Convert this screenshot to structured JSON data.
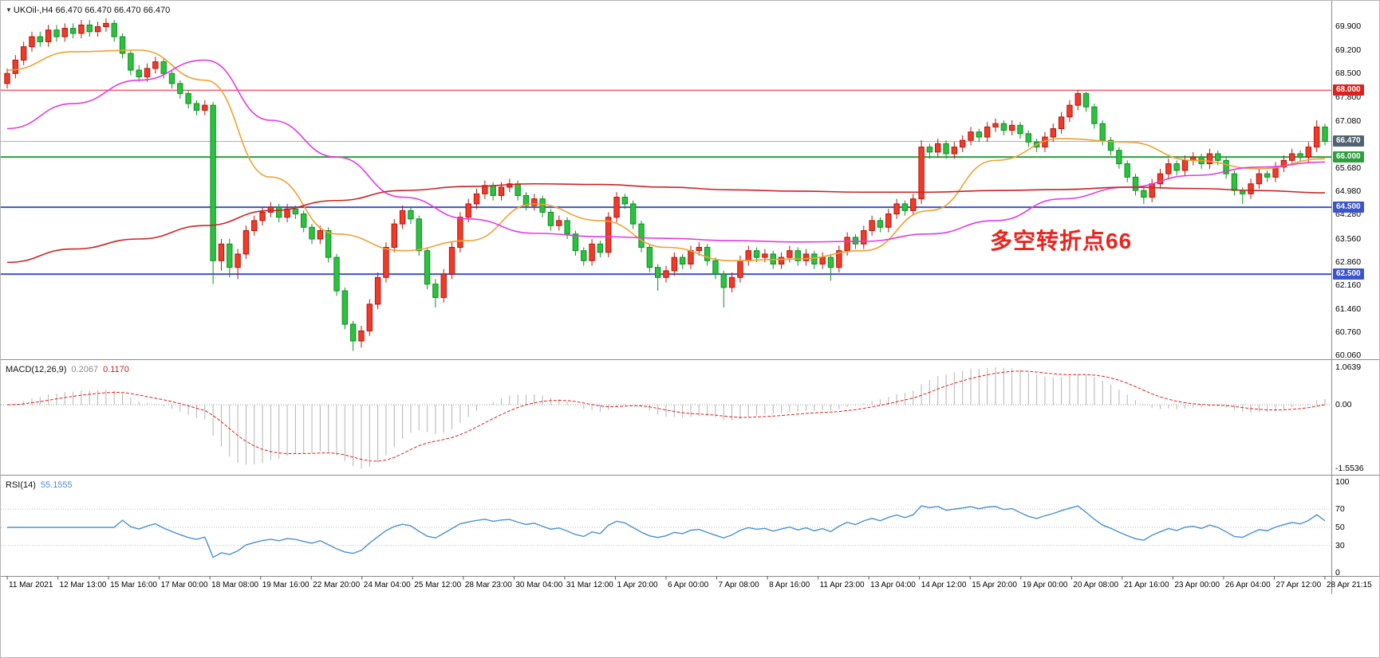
{
  "chart_data": [
    {
      "type": "candlestick",
      "symbol": "UKOil-,H4",
      "timeframe": "H4",
      "ohlc_readout": "66.470 66.470 66.470 66.470",
      "current_price": "66.470",
      "ylim": [
        60.0,
        70.15
      ],
      "up_color": "#f23a28",
      "up_stroke": "#b3170e",
      "down_color": "#2cc13e",
      "down_stroke": "#0e8f24",
      "axis_labels": [
        "69.900",
        "69.200",
        "68.500",
        "67.800",
        "67.080",
        "65.680",
        "64.980",
        "64.280",
        "63.560",
        "62.860",
        "62.160",
        "61.460",
        "60.760",
        "60.060"
      ],
      "hlines": [
        {
          "price": 68.0,
          "label": "68.000",
          "color": "#dd2020",
          "badge": "#dd2020",
          "width": 1
        },
        {
          "price": 66.0,
          "label": "66.000",
          "color": "#2e9e3e",
          "badge": "#2e9e3e",
          "width": 2
        },
        {
          "price": 64.5,
          "label": "64.500",
          "color": "#3c55cc",
          "badge": "#3c55cc",
          "width": 2
        },
        {
          "price": 62.5,
          "label": "62.500",
          "color": "#3c55cc",
          "badge": "#3c55cc",
          "width": 2
        }
      ],
      "bid_line": {
        "price": 66.47,
        "label": "66.470",
        "color": "#9ab4cc",
        "badge": "#50646f"
      },
      "annotation": {
        "text": "多空转折点66",
        "color": "#e8251f"
      },
      "x_labels": [
        "11 Mar 2021",
        "12 Mar 13:00",
        "15 Mar 16:00",
        "17 Mar 00:00",
        "18 Mar 08:00",
        "19 Mar 16:00",
        "22 Mar 20:00",
        "24 Mar 04:00",
        "25 Mar 12:00",
        "28 Mar 23:00",
        "30 Mar 04:00",
        "31 Mar 12:00",
        "1 Apr 20:00",
        "6 Apr 00:00",
        "7 Apr 08:00",
        "8 Apr 16:00",
        "11 Apr 23:00",
        "13 Apr 04:00",
        "14 Apr 12:00",
        "15 Apr 20:00",
        "19 Apr 00:00",
        "20 Apr 08:00",
        "21 Apr 16:00",
        "23 Apr 00:00",
        "26 Apr 04:00",
        "27 Apr 12:00",
        "28 Apr 21:15"
      ],
      "ma": [
        {
          "name": "ma-fast-orange",
          "color": "#f0a030",
          "sample_step": 8,
          "values": [
            68.6,
            69.15,
            69.2,
            68.3,
            65.4,
            63.7,
            63.2,
            63.5,
            64.6,
            64.1,
            63.3,
            62.9,
            62.95,
            63.2,
            64.4,
            65.9,
            66.55,
            66.45,
            65.9,
            65.65,
            65.95
          ]
        },
        {
          "name": "ma-mid-magenta",
          "color": "#e23ae2",
          "sample_step": 8,
          "values": [
            66.85,
            67.6,
            68.3,
            68.9,
            67.1,
            66.0,
            64.8,
            64.15,
            63.72,
            63.62,
            63.57,
            63.5,
            63.46,
            63.48,
            63.7,
            64.1,
            64.75,
            65.1,
            65.45,
            65.7,
            65.85
          ]
        },
        {
          "name": "ma-slow-red",
          "color": "#cc2222",
          "sample_step": 8,
          "values": [
            62.85,
            63.25,
            63.55,
            63.95,
            64.4,
            64.7,
            65.0,
            65.12,
            65.2,
            65.18,
            65.1,
            65.02,
            64.98,
            64.95,
            64.95,
            65.0,
            65.03,
            65.1,
            65.06,
            65.0,
            64.93
          ]
        }
      ],
      "ohlc": [
        [
          68.2,
          68.65,
          68.05,
          68.5
        ],
        [
          68.5,
          69.05,
          68.35,
          68.9
        ],
        [
          68.9,
          69.45,
          68.75,
          69.3
        ],
        [
          69.3,
          69.75,
          69.15,
          69.6
        ],
        [
          69.6,
          69.75,
          69.3,
          69.45
        ],
        [
          69.45,
          69.95,
          69.3,
          69.8
        ],
        [
          69.8,
          69.95,
          69.45,
          69.6
        ],
        [
          69.6,
          70.0,
          69.45,
          69.85
        ],
        [
          69.85,
          70.0,
          69.55,
          69.7
        ],
        [
          69.7,
          70.1,
          69.55,
          69.95
        ],
        [
          69.95,
          70.1,
          69.6,
          69.75
        ],
        [
          69.75,
          70.05,
          69.6,
          69.9
        ],
        [
          69.9,
          70.15,
          69.75,
          70.0
        ],
        [
          70.0,
          70.1,
          69.45,
          69.6
        ],
        [
          69.6,
          69.7,
          68.95,
          69.1
        ],
        [
          69.1,
          69.2,
          68.45,
          68.6
        ],
        [
          68.6,
          68.75,
          68.25,
          68.4
        ],
        [
          68.4,
          68.8,
          68.25,
          68.65
        ],
        [
          68.65,
          69.0,
          68.5,
          68.85
        ],
        [
          68.85,
          68.95,
          68.35,
          68.5
        ],
        [
          68.5,
          68.6,
          68.05,
          68.2
        ],
        [
          68.2,
          68.3,
          67.75,
          67.9
        ],
        [
          67.9,
          68.0,
          67.45,
          67.6
        ],
        [
          67.6,
          67.7,
          67.25,
          67.4
        ],
        [
          67.4,
          67.7,
          67.25,
          67.55
        ],
        [
          67.55,
          67.65,
          62.2,
          62.9
        ],
        [
          62.9,
          63.55,
          62.6,
          63.4
        ],
        [
          63.4,
          63.55,
          62.4,
          62.7
        ],
        [
          62.7,
          63.25,
          62.35,
          63.1
        ],
        [
          63.1,
          63.95,
          62.95,
          63.8
        ],
        [
          63.8,
          64.25,
          63.65,
          64.1
        ],
        [
          64.1,
          64.5,
          63.95,
          64.35
        ],
        [
          64.35,
          64.65,
          64.2,
          64.5
        ],
        [
          64.5,
          64.6,
          64.05,
          64.2
        ],
        [
          64.2,
          64.6,
          64.05,
          64.45
        ],
        [
          64.45,
          64.55,
          64.15,
          64.3
        ],
        [
          64.3,
          64.4,
          63.75,
          63.9
        ],
        [
          63.9,
          64.0,
          63.4,
          63.55
        ],
        [
          63.55,
          63.95,
          63.4,
          63.8
        ],
        [
          63.8,
          63.9,
          62.85,
          63.0
        ],
        [
          63.0,
          63.1,
          61.85,
          62.0
        ],
        [
          62.0,
          62.1,
          60.85,
          61.0
        ],
        [
          61.0,
          61.1,
          60.2,
          60.5
        ],
        [
          60.5,
          60.95,
          60.3,
          60.8
        ],
        [
          60.8,
          61.75,
          60.65,
          61.6
        ],
        [
          61.6,
          62.55,
          61.45,
          62.4
        ],
        [
          62.4,
          63.45,
          62.25,
          63.3
        ],
        [
          63.3,
          64.15,
          63.15,
          64.0
        ],
        [
          64.0,
          64.55,
          63.85,
          64.4
        ],
        [
          64.4,
          64.5,
          64.0,
          64.15
        ],
        [
          64.15,
          64.25,
          63.05,
          63.2
        ],
        [
          63.2,
          63.3,
          62.05,
          62.2
        ],
        [
          62.2,
          62.35,
          61.5,
          61.8
        ],
        [
          61.8,
          62.65,
          61.65,
          62.5
        ],
        [
          62.5,
          63.45,
          62.35,
          63.3
        ],
        [
          63.3,
          64.35,
          63.15,
          64.2
        ],
        [
          64.2,
          64.75,
          64.05,
          64.6
        ],
        [
          64.6,
          65.05,
          64.45,
          64.9
        ],
        [
          64.9,
          65.3,
          64.75,
          65.15
        ],
        [
          65.15,
          65.25,
          64.7,
          64.85
        ],
        [
          64.85,
          65.25,
          64.7,
          65.1
        ],
        [
          65.1,
          65.35,
          64.95,
          65.2
        ],
        [
          65.2,
          65.3,
          64.7,
          64.85
        ],
        [
          64.85,
          64.95,
          64.4,
          64.55
        ],
        [
          64.55,
          64.9,
          64.4,
          64.75
        ],
        [
          64.75,
          64.85,
          64.2,
          64.35
        ],
        [
          64.35,
          64.45,
          63.8,
          63.95
        ],
        [
          63.95,
          64.25,
          63.8,
          64.1
        ],
        [
          64.1,
          64.2,
          63.55,
          63.7
        ],
        [
          63.7,
          63.8,
          63.05,
          63.2
        ],
        [
          63.2,
          63.3,
          62.75,
          62.9
        ],
        [
          62.9,
          63.55,
          62.75,
          63.4
        ],
        [
          63.4,
          63.5,
          63.0,
          63.15
        ],
        [
          63.15,
          64.35,
          63.0,
          64.2
        ],
        [
          64.2,
          64.95,
          64.05,
          64.8
        ],
        [
          64.8,
          64.9,
          64.45,
          64.6
        ],
        [
          64.6,
          64.7,
          63.85,
          64.0
        ],
        [
          64.0,
          64.1,
          63.15,
          63.3
        ],
        [
          63.3,
          63.4,
          62.55,
          62.7
        ],
        [
          62.7,
          62.8,
          62.0,
          62.4
        ],
        [
          62.4,
          62.75,
          62.25,
          62.6
        ],
        [
          62.6,
          63.15,
          62.45,
          63.0
        ],
        [
          63.0,
          63.1,
          62.65,
          62.8
        ],
        [
          62.8,
          63.35,
          62.65,
          63.2
        ],
        [
          63.2,
          63.45,
          63.05,
          63.3
        ],
        [
          63.3,
          63.4,
          62.75,
          62.9
        ],
        [
          62.9,
          63.0,
          62.35,
          62.5
        ],
        [
          62.5,
          62.6,
          61.5,
          62.1
        ],
        [
          62.1,
          62.55,
          61.95,
          62.4
        ],
        [
          62.4,
          63.05,
          62.25,
          62.9
        ],
        [
          62.9,
          63.35,
          62.75,
          63.2
        ],
        [
          63.2,
          63.3,
          62.85,
          63.0
        ],
        [
          63.0,
          63.25,
          62.85,
          63.1
        ],
        [
          63.1,
          63.2,
          62.65,
          62.8
        ],
        [
          62.8,
          63.15,
          62.65,
          63.0
        ],
        [
          63.0,
          63.35,
          62.85,
          63.2
        ],
        [
          63.2,
          63.3,
          62.75,
          62.9
        ],
        [
          62.9,
          63.25,
          62.75,
          63.1
        ],
        [
          63.1,
          63.2,
          62.65,
          62.8
        ],
        [
          62.8,
          63.15,
          62.65,
          63.0
        ],
        [
          63.0,
          63.1,
          62.3,
          62.7
        ],
        [
          62.7,
          63.35,
          62.55,
          63.2
        ],
        [
          63.2,
          63.75,
          63.05,
          63.6
        ],
        [
          63.6,
          63.7,
          63.25,
          63.4
        ],
        [
          63.4,
          63.95,
          63.25,
          63.8
        ],
        [
          63.8,
          64.25,
          63.65,
          64.1
        ],
        [
          64.1,
          64.2,
          63.75,
          63.9
        ],
        [
          63.9,
          64.45,
          63.75,
          64.3
        ],
        [
          64.3,
          64.75,
          64.15,
          64.6
        ],
        [
          64.6,
          64.7,
          64.25,
          64.4
        ],
        [
          64.4,
          64.9,
          64.25,
          64.75
        ],
        [
          64.75,
          66.5,
          64.6,
          66.3
        ],
        [
          66.3,
          66.4,
          65.95,
          66.15
        ],
        [
          66.15,
          66.55,
          66.0,
          66.4
        ],
        [
          66.4,
          66.5,
          65.95,
          66.1
        ],
        [
          66.1,
          66.45,
          65.95,
          66.3
        ],
        [
          66.3,
          66.65,
          66.15,
          66.5
        ],
        [
          66.5,
          66.9,
          66.35,
          66.75
        ],
        [
          66.75,
          66.85,
          66.45,
          66.6
        ],
        [
          66.6,
          67.05,
          66.45,
          66.9
        ],
        [
          66.9,
          67.15,
          66.75,
          67.0
        ],
        [
          67.0,
          67.1,
          66.65,
          66.8
        ],
        [
          66.8,
          67.1,
          66.65,
          66.95
        ],
        [
          66.95,
          67.05,
          66.55,
          66.7
        ],
        [
          66.7,
          66.8,
          66.3,
          66.45
        ],
        [
          66.45,
          66.55,
          66.15,
          66.3
        ],
        [
          66.3,
          66.75,
          66.15,
          66.6
        ],
        [
          66.6,
          67.0,
          66.45,
          66.85
        ],
        [
          66.85,
          67.35,
          66.7,
          67.2
        ],
        [
          67.2,
          67.7,
          67.05,
          67.55
        ],
        [
          67.55,
          68.0,
          67.4,
          67.9
        ],
        [
          67.9,
          67.95,
          67.35,
          67.5
        ],
        [
          67.5,
          67.6,
          66.85,
          67.0
        ],
        [
          67.0,
          67.1,
          66.35,
          66.5
        ],
        [
          66.5,
          66.6,
          66.05,
          66.2
        ],
        [
          66.2,
          66.3,
          65.65,
          65.8
        ],
        [
          65.8,
          65.9,
          65.25,
          65.4
        ],
        [
          65.4,
          65.5,
          64.85,
          65.0
        ],
        [
          65.0,
          65.1,
          64.6,
          64.8
        ],
        [
          64.8,
          65.35,
          64.65,
          65.2
        ],
        [
          65.2,
          65.65,
          65.05,
          65.5
        ],
        [
          65.5,
          65.95,
          65.35,
          65.8
        ],
        [
          65.8,
          65.9,
          65.45,
          65.6
        ],
        [
          65.6,
          66.05,
          65.45,
          65.9
        ],
        [
          65.9,
          66.15,
          65.75,
          66.0
        ],
        [
          66.0,
          66.1,
          65.65,
          65.8
        ],
        [
          65.8,
          66.25,
          65.65,
          66.1
        ],
        [
          66.1,
          66.2,
          65.75,
          65.9
        ],
        [
          65.9,
          66.0,
          65.35,
          65.5
        ],
        [
          65.5,
          65.6,
          64.85,
          65.0
        ],
        [
          65.0,
          65.1,
          64.6,
          64.9
        ],
        [
          64.9,
          65.35,
          64.75,
          65.2
        ],
        [
          65.2,
          65.65,
          65.05,
          65.5
        ],
        [
          65.5,
          65.6,
          65.25,
          65.4
        ],
        [
          65.4,
          65.85,
          65.25,
          65.7
        ],
        [
          65.7,
          66.05,
          65.55,
          65.9
        ],
        [
          65.9,
          66.25,
          65.75,
          66.1
        ],
        [
          66.1,
          66.2,
          65.85,
          66.0
        ],
        [
          66.0,
          66.45,
          65.85,
          66.3
        ],
        [
          66.3,
          67.1,
          66.15,
          66.9
        ],
        [
          66.9,
          67.0,
          66.35,
          66.47
        ]
      ]
    },
    {
      "type": "bar",
      "label": "MACD(12,26,9)",
      "params": {
        "fast": 12,
        "slow": 26,
        "signal": 9
      },
      "current_main": "0.2067",
      "current_signal": "0.1170",
      "axis_labels": [
        "1.0639",
        "0.00",
        "-1.5536"
      ],
      "hist_color": "#b4b4b4",
      "signal_color": "#dd2222"
    },
    {
      "type": "line",
      "label": "RSI(14)",
      "period": 14,
      "current": "55.1555",
      "axis_labels": [
        "100",
        "70",
        "50",
        "30",
        "0"
      ],
      "levels": [
        70,
        50,
        30
      ],
      "color": "#4a90d2",
      "range": [
        0,
        100
      ]
    }
  ]
}
